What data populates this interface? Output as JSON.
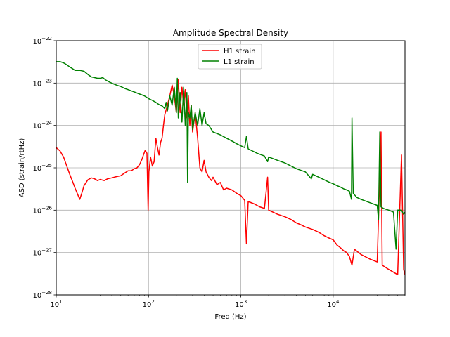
{
  "chart_data": {
    "type": "line",
    "title": "Amplitude Spectral Density",
    "xlabel": "Freq (Hz)",
    "ylabel": "ASD (strain/rtHz)",
    "xscale": "log",
    "yscale": "log",
    "xlim": [
      10,
      60000
    ],
    "ylim": [
      1e-28,
      1e-22
    ],
    "grid": true,
    "legend_position": "top-center",
    "x_ticks": [
      {
        "value": 10,
        "mant": "10",
        "exp": "1"
      },
      {
        "value": 100,
        "mant": "10",
        "exp": "2"
      },
      {
        "value": 1000,
        "mant": "10",
        "exp": "3"
      },
      {
        "value": 10000,
        "mant": "10",
        "exp": "4"
      }
    ],
    "y_ticks": [
      {
        "value": 1e-28,
        "mant": "10",
        "exp": "−28"
      },
      {
        "value": 1e-27,
        "mant": "10",
        "exp": "−27"
      },
      {
        "value": 1e-26,
        "mant": "10",
        "exp": "−26"
      },
      {
        "value": 1e-25,
        "mant": "10",
        "exp": "−25"
      },
      {
        "value": 1e-24,
        "mant": "10",
        "exp": "−24"
      },
      {
        "value": 1e-23,
        "mant": "10",
        "exp": "−23"
      },
      {
        "value": 1e-22,
        "mant": "10",
        "exp": "−22"
      }
    ],
    "series": [
      {
        "name": "H1 strain",
        "color": "#ff0000",
        "points": [
          [
            10,
            3e-25
          ],
          [
            11,
            2.5e-25
          ],
          [
            12,
            1.8e-25
          ],
          [
            13,
            1.1e-25
          ],
          [
            14,
            7e-26
          ],
          [
            15,
            4.8e-26
          ],
          [
            16,
            3.3e-26
          ],
          [
            17,
            2.4e-26
          ],
          [
            18,
            1.8e-26
          ],
          [
            19,
            2.6e-26
          ],
          [
            20,
            3.8e-26
          ],
          [
            22,
            5.2e-26
          ],
          [
            24,
            5.8e-26
          ],
          [
            26,
            5.5e-26
          ],
          [
            28,
            5e-26
          ],
          [
            30,
            5.3e-26
          ],
          [
            33,
            5e-26
          ],
          [
            36,
            5.5e-26
          ],
          [
            40,
            5.8e-26
          ],
          [
            45,
            6.2e-26
          ],
          [
            50,
            6.5e-26
          ],
          [
            55,
            7.5e-26
          ],
          [
            60,
            8.5e-26
          ],
          [
            65,
            8.5e-26
          ],
          [
            70,
            9.5e-26
          ],
          [
            75,
            1e-25
          ],
          [
            80,
            1.2e-25
          ],
          [
            85,
            1.6e-25
          ],
          [
            88,
            2e-25
          ],
          [
            92,
            2.6e-25
          ],
          [
            96,
            2.2e-25
          ],
          [
            99,
            1e-26
          ],
          [
            101,
            8e-26
          ],
          [
            105,
            1.8e-25
          ],
          [
            110,
            1.1e-25
          ],
          [
            115,
            1.4e-25
          ],
          [
            120,
            5e-25
          ],
          [
            125,
            3e-25
          ],
          [
            130,
            2e-25
          ],
          [
            135,
            4e-25
          ],
          [
            140,
            5e-25
          ],
          [
            145,
            1e-24
          ],
          [
            150,
            1.8e-24
          ],
          [
            160,
            3e-24
          ],
          [
            170,
            5e-24
          ],
          [
            180,
            9e-24
          ],
          [
            190,
            5e-24
          ],
          [
            200,
            2e-24
          ],
          [
            210,
            1.2e-23
          ],
          [
            220,
            2e-24
          ],
          [
            230,
            8e-24
          ],
          [
            240,
            3e-24
          ],
          [
            250,
            7e-24
          ],
          [
            260,
            1.5e-24
          ],
          [
            270,
            5e-24
          ],
          [
            280,
            1e-24
          ],
          [
            290,
            3e-24
          ],
          [
            300,
            7e-25
          ],
          [
            320,
            2e-24
          ],
          [
            340,
            5e-25
          ],
          [
            360,
            1e-25
          ],
          [
            380,
            8e-26
          ],
          [
            400,
            1.5e-25
          ],
          [
            420,
            8e-26
          ],
          [
            450,
            6e-26
          ],
          [
            480,
            5e-26
          ],
          [
            500,
            6e-26
          ],
          [
            550,
            4e-26
          ],
          [
            600,
            4.5e-26
          ],
          [
            650,
            3e-26
          ],
          [
            700,
            3.3e-26
          ],
          [
            800,
            3e-26
          ],
          [
            900,
            2.5e-26
          ],
          [
            1000,
            2.2e-26
          ],
          [
            1100,
            1.7e-26
          ],
          [
            1150,
            1.6e-27
          ],
          [
            1200,
            1.6e-26
          ],
          [
            1400,
            1.4e-26
          ],
          [
            1600,
            1.2e-26
          ],
          [
            1800,
            1.1e-26
          ],
          [
            1950,
            6e-26
          ],
          [
            2000,
            1e-26
          ],
          [
            2500,
            8e-27
          ],
          [
            3000,
            7e-27
          ],
          [
            3500,
            6e-27
          ],
          [
            4000,
            5e-27
          ],
          [
            4500,
            4.5e-27
          ],
          [
            5000,
            4e-27
          ],
          [
            6000,
            3.5e-27
          ],
          [
            7000,
            3e-27
          ],
          [
            8000,
            2.5e-27
          ],
          [
            9000,
            2.2e-27
          ],
          [
            10000,
            2e-27
          ],
          [
            11000,
            1.5e-27
          ],
          [
            12000,
            1.3e-27
          ],
          [
            13000,
            1.1e-27
          ],
          [
            14000,
            1e-27
          ],
          [
            15000,
            8e-28
          ],
          [
            16000,
            5e-28
          ],
          [
            17000,
            1.2e-27
          ],
          [
            20000,
            9e-28
          ],
          [
            25000,
            7e-28
          ],
          [
            30000,
            6e-28
          ],
          [
            33000,
            7e-25
          ],
          [
            34000,
            5e-28
          ],
          [
            40000,
            4e-28
          ],
          [
            50000,
            3e-28
          ],
          [
            55000,
            2e-25
          ],
          [
            58000,
            4e-28
          ],
          [
            60000,
            3e-28
          ]
        ]
      },
      {
        "name": "L1 strain",
        "color": "#008000",
        "points": [
          [
            10,
            3.2e-23
          ],
          [
            11,
            3.2e-23
          ],
          [
            12,
            3e-23
          ],
          [
            13,
            2.7e-23
          ],
          [
            14,
            2.4e-23
          ],
          [
            15,
            2.2e-23
          ],
          [
            16,
            2e-23
          ],
          [
            17,
            2e-23
          ],
          [
            18,
            2e-23
          ],
          [
            19,
            1.95e-23
          ],
          [
            20,
            1.9e-23
          ],
          [
            22,
            1.6e-23
          ],
          [
            24,
            1.4e-23
          ],
          [
            26,
            1.35e-23
          ],
          [
            28,
            1.3e-23
          ],
          [
            30,
            1.3e-23
          ],
          [
            32,
            1.35e-23
          ],
          [
            34,
            1.2e-23
          ],
          [
            38,
            1.05e-23
          ],
          [
            42,
            9.5e-24
          ],
          [
            46,
            8.8e-24
          ],
          [
            50,
            8.3e-24
          ],
          [
            55,
            7.5e-24
          ],
          [
            60,
            7e-24
          ],
          [
            70,
            6.2e-24
          ],
          [
            80,
            5.5e-24
          ],
          [
            90,
            5e-24
          ],
          [
            100,
            4.3e-24
          ],
          [
            110,
            3.9e-24
          ],
          [
            120,
            3.5e-24
          ],
          [
            130,
            3.1e-24
          ],
          [
            140,
            2.9e-24
          ],
          [
            150,
            2.5e-24
          ],
          [
            155,
            3.5e-24
          ],
          [
            160,
            2.2e-24
          ],
          [
            170,
            5e-24
          ],
          [
            180,
            3e-24
          ],
          [
            190,
            8e-24
          ],
          [
            200,
            2e-24
          ],
          [
            205,
            1.3e-23
          ],
          [
            210,
            1.5e-24
          ],
          [
            220,
            6e-24
          ],
          [
            230,
            1.2e-24
          ],
          [
            240,
            8e-24
          ],
          [
            250,
            1e-24
          ],
          [
            260,
            6e-24
          ],
          [
            265,
            4.5e-26
          ],
          [
            270,
            2e-24
          ],
          [
            280,
            1.5e-24
          ],
          [
            290,
            3e-24
          ],
          [
            300,
            8e-25
          ],
          [
            320,
            2e-24
          ],
          [
            340,
            1e-24
          ],
          [
            360,
            2.5e-24
          ],
          [
            380,
            1e-24
          ],
          [
            400,
            2e-24
          ],
          [
            420,
            1.1e-24
          ],
          [
            450,
            1e-24
          ],
          [
            500,
            7e-25
          ],
          [
            600,
            6e-25
          ],
          [
            700,
            5e-25
          ],
          [
            800,
            4.3e-25
          ],
          [
            900,
            3.7e-25
          ],
          [
            1000,
            3.3e-25
          ],
          [
            1100,
            3e-25
          ],
          [
            1150,
            5.5e-25
          ],
          [
            1200,
            2.8e-25
          ],
          [
            1500,
            2.2e-25
          ],
          [
            1800,
            1.9e-25
          ],
          [
            1950,
            1.4e-25
          ],
          [
            2000,
            1.8e-25
          ],
          [
            2500,
            1.5e-25
          ],
          [
            3000,
            1.3e-25
          ],
          [
            3500,
            1.1e-25
          ],
          [
            4000,
            9.5e-26
          ],
          [
            5000,
            8e-26
          ],
          [
            5800,
            5.5e-26
          ],
          [
            6000,
            7e-26
          ],
          [
            7000,
            6e-26
          ],
          [
            8000,
            5.2e-26
          ],
          [
            9000,
            4.6e-26
          ],
          [
            10000,
            4.2e-26
          ],
          [
            11000,
            3.8e-26
          ],
          [
            12000,
            3.5e-26
          ],
          [
            13000,
            3.2e-26
          ],
          [
            14000,
            3e-26
          ],
          [
            15000,
            2.8e-26
          ],
          [
            15800,
            1.8e-26
          ],
          [
            16000,
            1.5e-24
          ],
          [
            16500,
            2.5e-26
          ],
          [
            18000,
            2e-26
          ],
          [
            20000,
            1.8e-26
          ],
          [
            25000,
            1.5e-26
          ],
          [
            30000,
            1.3e-26
          ],
          [
            31000,
            6e-27
          ],
          [
            32000,
            7e-25
          ],
          [
            33000,
            1.2e-26
          ],
          [
            35000,
            1.1e-26
          ],
          [
            40000,
            1e-26
          ],
          [
            45000,
            9e-27
          ],
          [
            48000,
            1.2e-27
          ],
          [
            50000,
            1e-26
          ],
          [
            55000,
            1e-26
          ],
          [
            58000,
            8e-27
          ],
          [
            60000,
            9e-27
          ]
        ]
      }
    ]
  }
}
